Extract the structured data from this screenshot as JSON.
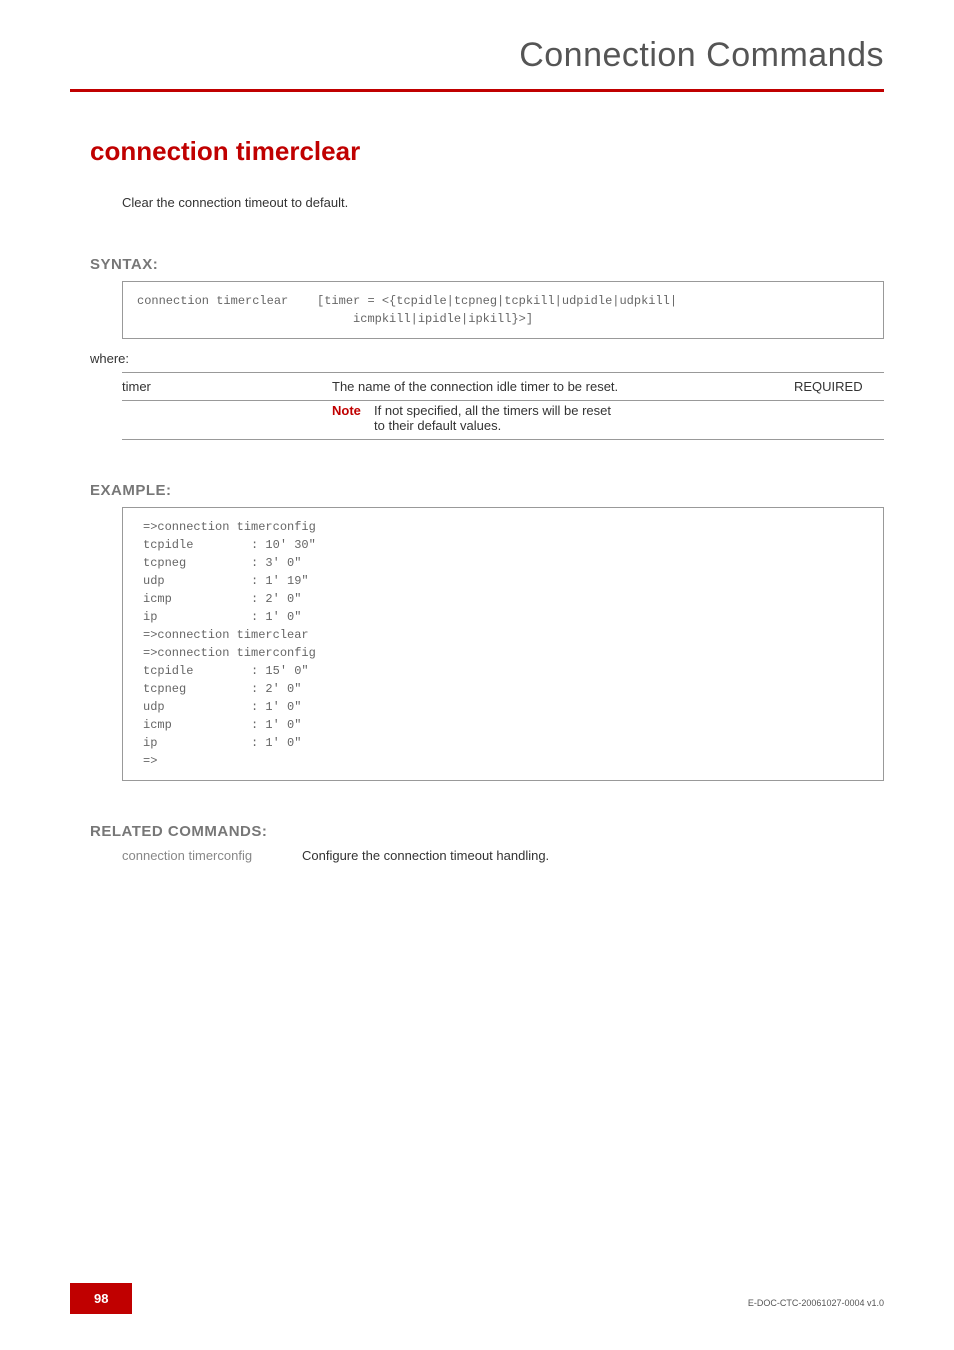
{
  "header": {
    "title": "Connection Commands"
  },
  "command": {
    "title": "connection timerclear",
    "description": "Clear the connection timeout to default."
  },
  "syntax": {
    "label": "SYNTAX:",
    "line1": "connection timerclear    [timer = <{tcpidle|tcpneg|tcpkill|udpidle|udpkill|",
    "line2": "                              icmpkill|ipidle|ipkill}>]",
    "where": "where:"
  },
  "param": {
    "name": "timer",
    "desc": "The name of the connection idle timer to be reset.",
    "note_label": "Note",
    "note_line1": "If not specified, all the timers will be reset",
    "note_line2": "to their default values.",
    "required": "REQUIRED"
  },
  "example": {
    "label": "EXAMPLE:",
    "text": "=>connection timerconfig\ntcpidle        : 10' 30\"\ntcpneg         : 3' 0\"\nudp            : 1' 19\"\nicmp           : 2' 0\"\nip             : 1' 0\"\n=>connection timerclear\n=>connection timerconfig\ntcpidle        : 15' 0\"\ntcpneg         : 2' 0\"\nudp            : 1' 0\"\nicmp           : 1' 0\"\nip             : 1' 0\"\n=>"
  },
  "related": {
    "label": "RELATED COMMANDS:",
    "cmd": "connection timerconfig",
    "desc": "Configure the connection timeout handling."
  },
  "footer": {
    "page": "98",
    "docid": "E-DOC-CTC-20061027-0004 v1.0"
  },
  "colors": {
    "accent": "#c00000",
    "header_text": "#555555",
    "section_label": "#777777",
    "body_text": "#333333",
    "mono_text": "#666666",
    "border": "#999999",
    "related_cmd": "#888888",
    "page_bg": "#ffffff",
    "page_num_text": "#ffffff"
  }
}
